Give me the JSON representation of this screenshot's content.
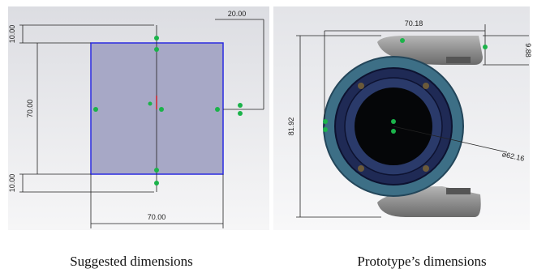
{
  "figure": {
    "left": {
      "dimensions": [
        "10.00",
        "70.00",
        "10.00",
        "70.00",
        "20.00"
      ],
      "caption": "Suggested dimensions"
    },
    "right": {
      "dimensions": [
        "70.18",
        "9.88",
        "81.92",
        "⌀62.16"
      ],
      "caption": "Prototype’s dimensions"
    }
  }
}
